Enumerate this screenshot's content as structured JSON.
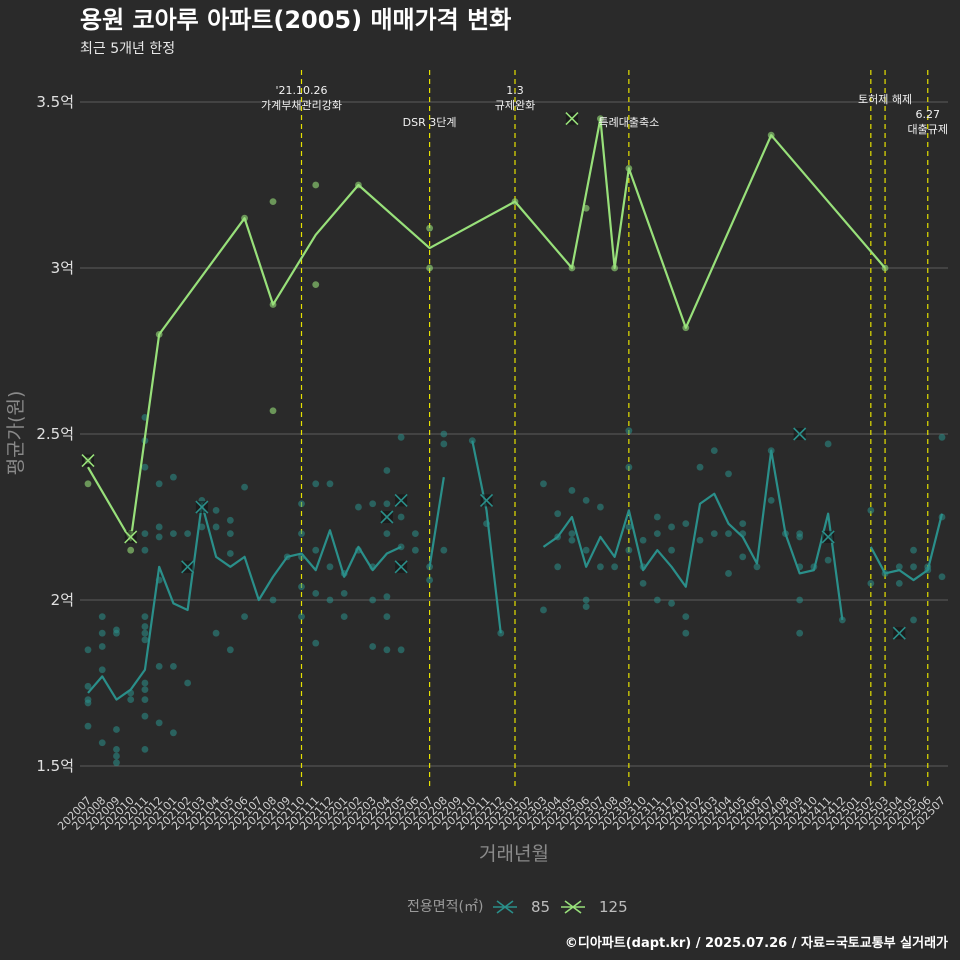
{
  "title": "용원 코아루 아파트(2005) 매매가격 변화",
  "subtitle": "최근 5개년 한정",
  "caption": "©디아파트(dapt.kr) / 2025.07.26 / 자료=국토교통부 실거래가",
  "chart_data": {
    "type": "line",
    "xlabel": "거래년월",
    "ylabel": "평균가(원)",
    "ylim": [
      1.4,
      3.6
    ],
    "yticks": [
      1.5,
      2,
      2.5,
      3,
      3.5
    ],
    "ytick_labels": [
      "1.5억",
      "2억",
      "2.5억",
      "3억",
      "3.5억"
    ],
    "legend": {
      "title": "전용면적(㎡)",
      "position": "bottom"
    },
    "months": [
      "202007",
      "202008",
      "202009",
      "202010",
      "202011",
      "202012",
      "202101",
      "202102",
      "202103",
      "202104",
      "202105",
      "202106",
      "202107",
      "202108",
      "202109",
      "202110",
      "202111",
      "202112",
      "202201",
      "202202",
      "202203",
      "202204",
      "202205",
      "202206",
      "202207",
      "202208",
      "202209",
      "202210",
      "202211",
      "202212",
      "202301",
      "202302",
      "202303",
      "202304",
      "202305",
      "202306",
      "202307",
      "202308",
      "202309",
      "202310",
      "202311",
      "202312",
      "202401",
      "202402",
      "202403",
      "202404",
      "202405",
      "202406",
      "202407",
      "202408",
      "202409",
      "202410",
      "202411",
      "202412",
      "202501",
      "202502",
      "202503",
      "202504",
      "202505",
      "202506",
      "202507"
    ],
    "series": [
      {
        "name": "85",
        "color": "#2a8f8a",
        "line": [
          1.72,
          1.77,
          1.7,
          1.73,
          1.79,
          2.1,
          1.99,
          1.97,
          2.29,
          2.13,
          2.1,
          2.13,
          2.0,
          2.07,
          2.13,
          2.14,
          2.09,
          2.21,
          2.07,
          2.16,
          2.09,
          2.14,
          2.16,
          null,
          2.1,
          2.37,
          null,
          2.48,
          2.27,
          1.9,
          null,
          null,
          2.16,
          2.19,
          2.25,
          2.1,
          2.19,
          2.13,
          2.27,
          2.09,
          2.15,
          2.1,
          2.04,
          2.29,
          2.32,
          2.23,
          2.19,
          2.11,
          2.45,
          2.2,
          2.08,
          2.09,
          2.26,
          1.94,
          null,
          2.16,
          2.08,
          2.09,
          2.06,
          2.09,
          2.26
        ],
        "points": [
          [
            0,
            1.74
          ],
          [
            0,
            1.69
          ],
          [
            0,
            1.62
          ],
          [
            0,
            1.7
          ],
          [
            0,
            1.85
          ],
          [
            1,
            1.79
          ],
          [
            1,
            1.95
          ],
          [
            1,
            1.9
          ],
          [
            1,
            1.86
          ],
          [
            1,
            1.57
          ],
          [
            2,
            1.61
          ],
          [
            2,
            1.91
          ],
          [
            2,
            1.9
          ],
          [
            2,
            1.55
          ],
          [
            2,
            1.53
          ],
          [
            2,
            1.51
          ],
          [
            3,
            1.72
          ],
          [
            3,
            1.7
          ],
          [
            4,
            2.55
          ],
          [
            4,
            2.48
          ],
          [
            4,
            2.4
          ],
          [
            4,
            2.2
          ],
          [
            4,
            2.15
          ],
          [
            4,
            1.95
          ],
          [
            4,
            1.92
          ],
          [
            4,
            1.9
          ],
          [
            4,
            1.88
          ],
          [
            4,
            1.75
          ],
          [
            4,
            1.73
          ],
          [
            4,
            1.7
          ],
          [
            4,
            1.65
          ],
          [
            4,
            1.55
          ],
          [
            5,
            2.35
          ],
          [
            5,
            2.22
          ],
          [
            5,
            2.19
          ],
          [
            5,
            2.06
          ],
          [
            5,
            1.8
          ],
          [
            5,
            1.63
          ],
          [
            6,
            2.37
          ],
          [
            6,
            2.2
          ],
          [
            6,
            1.8
          ],
          [
            6,
            1.6
          ],
          [
            7,
            2.2
          ],
          [
            7,
            1.75
          ],
          [
            8,
            2.3
          ],
          [
            8,
            2.22
          ],
          [
            9,
            2.27
          ],
          [
            9,
            2.22
          ],
          [
            9,
            1.9
          ],
          [
            10,
            2.24
          ],
          [
            10,
            2.2
          ],
          [
            10,
            2.14
          ],
          [
            10,
            1.85
          ],
          [
            11,
            2.34
          ],
          [
            11,
            1.95
          ],
          [
            13,
            2.0
          ],
          [
            14,
            2.13
          ],
          [
            15,
            2.29
          ],
          [
            15,
            2.2
          ],
          [
            15,
            2.13
          ],
          [
            15,
            2.04
          ],
          [
            15,
            1.95
          ],
          [
            16,
            2.35
          ],
          [
            16,
            2.15
          ],
          [
            16,
            2.02
          ],
          [
            16,
            1.87
          ],
          [
            17,
            2.35
          ],
          [
            17,
            2.1
          ],
          [
            17,
            2.0
          ],
          [
            18,
            2.08
          ],
          [
            18,
            2.02
          ],
          [
            18,
            1.95
          ],
          [
            19,
            2.28
          ],
          [
            19,
            2.15
          ],
          [
            20,
            2.29
          ],
          [
            20,
            2.1
          ],
          [
            20,
            2.0
          ],
          [
            20,
            1.86
          ],
          [
            21,
            2.39
          ],
          [
            21,
            2.29
          ],
          [
            21,
            2.2
          ],
          [
            21,
            2.01
          ],
          [
            21,
            1.95
          ],
          [
            21,
            1.85
          ],
          [
            22,
            2.49
          ],
          [
            22,
            2.25
          ],
          [
            22,
            2.16
          ],
          [
            22,
            1.85
          ],
          [
            23,
            2.2
          ],
          [
            23,
            2.15
          ],
          [
            24,
            2.1
          ],
          [
            24,
            2.06
          ],
          [
            25,
            2.5
          ],
          [
            25,
            2.47
          ],
          [
            25,
            2.15
          ],
          [
            27,
            2.48
          ],
          [
            28,
            2.23
          ],
          [
            29,
            1.9
          ],
          [
            32,
            2.35
          ],
          [
            32,
            1.97
          ],
          [
            33,
            2.26
          ],
          [
            33,
            2.19
          ],
          [
            33,
            2.1
          ],
          [
            34,
            2.33
          ],
          [
            34,
            2.2
          ],
          [
            34,
            2.18
          ],
          [
            35,
            2.3
          ],
          [
            35,
            2.15
          ],
          [
            35,
            2.0
          ],
          [
            35,
            1.98
          ],
          [
            36,
            2.28
          ],
          [
            36,
            2.1
          ],
          [
            37,
            2.1
          ],
          [
            38,
            2.51
          ],
          [
            38,
            2.4
          ],
          [
            38,
            2.22
          ],
          [
            38,
            2.15
          ],
          [
            39,
            2.18
          ],
          [
            39,
            2.1
          ],
          [
            39,
            2.05
          ],
          [
            40,
            2.25
          ],
          [
            40,
            2.2
          ],
          [
            40,
            2.0
          ],
          [
            41,
            2.22
          ],
          [
            41,
            2.15
          ],
          [
            41,
            1.99
          ],
          [
            42,
            2.23
          ],
          [
            42,
            1.95
          ],
          [
            42,
            1.9
          ],
          [
            43,
            2.4
          ],
          [
            43,
            2.18
          ],
          [
            44,
            2.45
          ],
          [
            44,
            2.2
          ],
          [
            45,
            2.38
          ],
          [
            45,
            2.2
          ],
          [
            45,
            2.08
          ],
          [
            46,
            2.23
          ],
          [
            46,
            2.2
          ],
          [
            46,
            2.13
          ],
          [
            47,
            2.1
          ],
          [
            48,
            2.45
          ],
          [
            48,
            2.3
          ],
          [
            49,
            2.2
          ],
          [
            50,
            2.2
          ],
          [
            50,
            2.19
          ],
          [
            50,
            2.1
          ],
          [
            50,
            2.0
          ],
          [
            50,
            1.9
          ],
          [
            51,
            2.1
          ],
          [
            52,
            2.47
          ],
          [
            52,
            2.12
          ],
          [
            53,
            1.94
          ],
          [
            55,
            2.27
          ],
          [
            55,
            2.05
          ],
          [
            56,
            2.08
          ],
          [
            57,
            2.1
          ],
          [
            57,
            2.05
          ],
          [
            58,
            2.15
          ],
          [
            58,
            2.1
          ],
          [
            58,
            1.94
          ],
          [
            59,
            2.1
          ],
          [
            59,
            2.09
          ],
          [
            60,
            2.49
          ],
          [
            60,
            2.25
          ],
          [
            60,
            2.07
          ]
        ],
        "max_markers": [
          [
            8,
            2.28
          ],
          [
            7,
            2.1
          ],
          [
            21,
            2.25
          ],
          [
            22,
            2.3
          ],
          [
            22,
            2.1
          ],
          [
            28,
            2.3
          ],
          [
            50,
            2.5
          ],
          [
            52,
            2.19
          ],
          [
            57,
            1.9
          ]
        ]
      },
      {
        "name": "125",
        "color": "#98e07a",
        "line": [
          2.4,
          null,
          null,
          2.18,
          null,
          2.8,
          null,
          null,
          null,
          null,
          null,
          3.15,
          null,
          2.89,
          null,
          null,
          3.1,
          null,
          null,
          3.25,
          null,
          null,
          null,
          null,
          3.06,
          null,
          null,
          null,
          null,
          null,
          3.2,
          null,
          null,
          null,
          3.0,
          null,
          3.45,
          3.0,
          3.3,
          null,
          null,
          null,
          2.82,
          null,
          null,
          null,
          null,
          null,
          3.4,
          null,
          null,
          null,
          null,
          null,
          null,
          null,
          3.0,
          null,
          null,
          null,
          null
        ],
        "points": [
          [
            0,
            2.35
          ],
          [
            0,
            2.42
          ],
          [
            3,
            2.15
          ],
          [
            3,
            2.2
          ],
          [
            5,
            2.8
          ],
          [
            11,
            3.15
          ],
          [
            13,
            3.2
          ],
          [
            13,
            2.57
          ],
          [
            13,
            2.89
          ],
          [
            16,
            3.25
          ],
          [
            16,
            2.95
          ],
          [
            19,
            3.25
          ],
          [
            24,
            3.12
          ],
          [
            24,
            3.0
          ],
          [
            30,
            3.2
          ],
          [
            34,
            3.0
          ],
          [
            35,
            3.18
          ],
          [
            36,
            3.45
          ],
          [
            37,
            3.0
          ],
          [
            38,
            3.3
          ],
          [
            42,
            2.82
          ],
          [
            48,
            3.4
          ],
          [
            56,
            3.0
          ]
        ],
        "max_markers": [
          [
            0,
            2.42
          ],
          [
            3,
            2.19
          ],
          [
            34,
            3.45
          ]
        ]
      }
    ],
    "annotations": [
      {
        "month": "202110",
        "lines": [
          "'21.10.26",
          "가계부채관리강화"
        ],
        "row": "high"
      },
      {
        "month": "202207",
        "lines": [
          "DSR 3단계"
        ],
        "row": "low"
      },
      {
        "month": "202301",
        "lines": [
          "1.3",
          "규제완화"
        ],
        "row": "high"
      },
      {
        "month": "202309",
        "lines": [
          "특례대출축소"
        ],
        "row": "low"
      },
      {
        "month": "202502",
        "lines": [],
        "row": "none"
      },
      {
        "month": "202503",
        "lines": [
          "토허제 해제"
        ],
        "row": "mid"
      },
      {
        "month": "202506",
        "lines": [
          "6.27",
          "대출규제"
        ],
        "row": "lowest"
      }
    ]
  }
}
